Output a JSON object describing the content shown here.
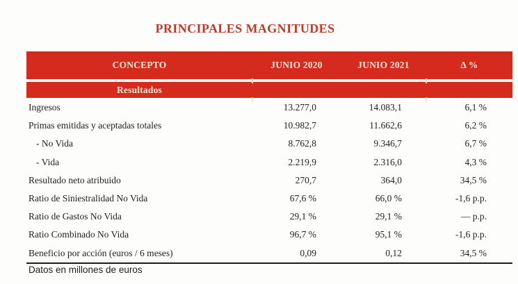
{
  "title": "PRINCIPALES MAGNITUDES",
  "footnote": "Datos en millones de euros",
  "colors": {
    "band_red": "#d52b1e",
    "title_red": "#bd3a2a",
    "header_text_cream": "#f2ead8",
    "body_text": "#222222",
    "tick_cream": "#e6dcae",
    "bottom_rule": "#1c1c1c"
  },
  "table": {
    "headers": [
      "CONCEPTO",
      "JUNIO 2020",
      "JUNIO 2021",
      "Δ %"
    ],
    "section": "Resultados",
    "rows": [
      {
        "label": "Ingresos",
        "indent": false,
        "junio_2020": "13.277,0",
        "junio_2021": "14.083,1",
        "delta": "6,1 %"
      },
      {
        "label": "Primas emitidas y aceptadas totales",
        "indent": false,
        "junio_2020": "10.982,7",
        "junio_2021": "11.662,6",
        "delta": "6,2 %"
      },
      {
        "label": "- No Vida",
        "indent": true,
        "junio_2020": "8.762,8",
        "junio_2021": "9.346,7",
        "delta": "6,7 %"
      },
      {
        "label": "- Vida",
        "indent": true,
        "junio_2020": "2.219,9",
        "junio_2021": "2.316,0",
        "delta": "4,3 %"
      },
      {
        "label": "Resultado neto atribuido",
        "indent": false,
        "junio_2020": "270,7",
        "junio_2021": "364,0",
        "delta": "34,5 %"
      },
      {
        "label": "Ratio de Siniestralidad No Vida",
        "indent": false,
        "junio_2020": "67,6 %",
        "junio_2021": "66,0 %",
        "delta": "-1,6 p.p."
      },
      {
        "label": "Ratio de Gastos No Vida",
        "indent": false,
        "junio_2020": "29,1 %",
        "junio_2021": "29,1 %",
        "delta": "— p.p."
      },
      {
        "label": "Ratio Combinado No Vida",
        "indent": false,
        "junio_2020": "96,7 %",
        "junio_2021": "95,1 %",
        "delta": "-1,6 p.p."
      },
      {
        "label": "Beneficio por acción (euros / 6 meses)",
        "indent": false,
        "junio_2020": "0,09",
        "junio_2021": "0,12",
        "delta": "34,5 %"
      }
    ]
  },
  "chart_data": {
    "type": "table",
    "title": "PRINCIPALES MAGNITUDES",
    "columns": [
      "CONCEPTO",
      "JUNIO 2020",
      "JUNIO 2021",
      "Δ %"
    ],
    "section": "Resultados",
    "rows": [
      [
        "Ingresos",
        "13.277,0",
        "14.083,1",
        "6,1 %"
      ],
      [
        "Primas emitidas y aceptadas totales",
        "10.982,7",
        "11.662,6",
        "6,2 %"
      ],
      [
        "- No Vida",
        "8.762,8",
        "9.346,7",
        "6,7 %"
      ],
      [
        "- Vida",
        "2.219,9",
        "2.316,0",
        "4,3 %"
      ],
      [
        "Resultado neto atribuido",
        "270,7",
        "364,0",
        "34,5 %"
      ],
      [
        "Ratio de Siniestralidad No Vida",
        "67,6 %",
        "66,0 %",
        "-1,6 p.p."
      ],
      [
        "Ratio de Gastos No Vida",
        "29,1 %",
        "29,1 %",
        "— p.p."
      ],
      [
        "Ratio Combinado No Vida",
        "96,7 %",
        "95,1 %",
        "-1,6 p.p."
      ],
      [
        "Beneficio por acción (euros / 6 meses)",
        "0,09",
        "0,12",
        "34,5 %"
      ]
    ],
    "footnote": "Datos en millones de euros"
  }
}
